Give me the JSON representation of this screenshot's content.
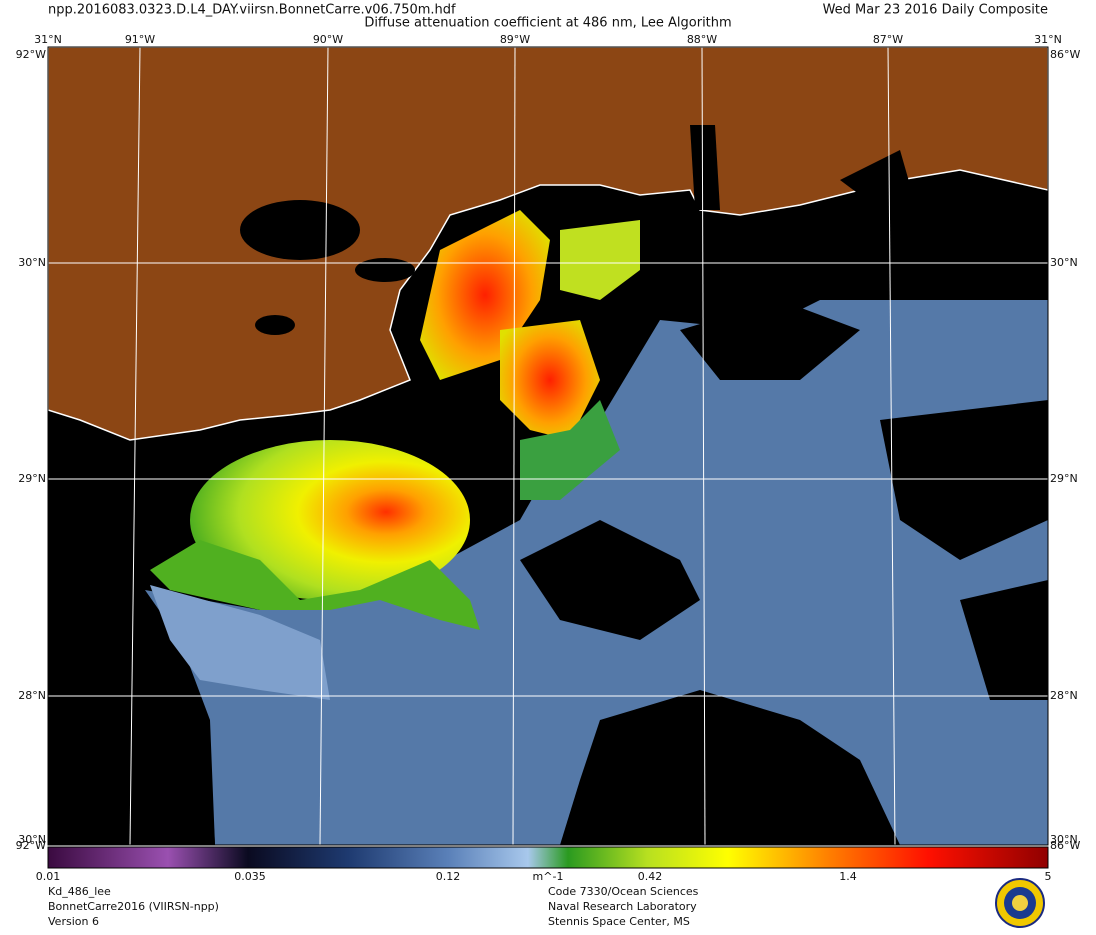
{
  "header": {
    "filename": "npp.2016083.0323.D.L4_DAY.viirsn.BonnetCarre.v06.750m.hdf",
    "title": "Diffuse attenuation coefficient at 486 nm, Lee Algorithm",
    "date": "Wed Mar 23 2016 Daily Composite"
  },
  "map": {
    "lon_labels": [
      "91°W",
      "90°W",
      "89°W",
      "88°W",
      "87°W"
    ],
    "lat_labels": [
      "30°N",
      "29°N",
      "28°N"
    ],
    "corner_labels": {
      "top_left": "31°N",
      "top_right": "31°N",
      "left_top": "92°W",
      "right_top": "86°W",
      "bottom_left": "30°N",
      "bottom_right": "30°N",
      "left_bottom": "92°W",
      "right_bottom": "86°W"
    }
  },
  "colorbar": {
    "ticks": [
      "0.01",
      "0.035",
      "0.12",
      "0.42",
      "1.4",
      "5"
    ],
    "unit": "m^-1"
  },
  "footer": {
    "left": [
      "Kd_486_lee",
      "BonnetCarre2016 (VIIRSN-npp)",
      "Version 6"
    ],
    "right": [
      "Code 7330/Ocean Sciences",
      "Naval Research Laboratory",
      "Stennis Space Center, MS"
    ]
  }
}
